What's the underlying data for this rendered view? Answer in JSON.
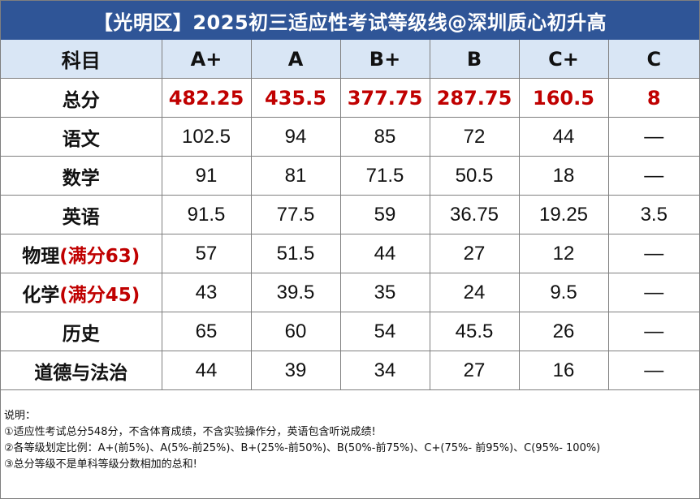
{
  "title": "【光明区】2025初三适应性考试等级线@深圳质心初升高",
  "table": {
    "headers": [
      "科目",
      "A+",
      "A",
      "B+",
      "B",
      "C+",
      "C"
    ],
    "total_row": {
      "subject": "总分",
      "values": [
        "482.25",
        "435.5",
        "377.75",
        "287.75",
        "160.5",
        "8"
      ]
    },
    "rows": [
      {
        "subject": "语文",
        "note": "",
        "values": [
          "102.5",
          "94",
          "85",
          "72",
          "44",
          "—"
        ]
      },
      {
        "subject": "数学",
        "note": "",
        "values": [
          "91",
          "81",
          "71.5",
          "50.5",
          "18",
          "—"
        ]
      },
      {
        "subject": "英语",
        "note": "",
        "values": [
          "91.5",
          "77.5",
          "59",
          "36.75",
          "19.25",
          "3.5"
        ]
      },
      {
        "subject": "物理",
        "note": "(满分63)",
        "values": [
          "57",
          "51.5",
          "44",
          "27",
          "12",
          "—"
        ]
      },
      {
        "subject": "化学",
        "note": "(满分45)",
        "values": [
          "43",
          "39.5",
          "35",
          "24",
          "9.5",
          "—"
        ]
      },
      {
        "subject": "历史",
        "note": "",
        "values": [
          "65",
          "60",
          "54",
          "45.5",
          "26",
          "—"
        ]
      },
      {
        "subject": "道德与法治",
        "note": "",
        "values": [
          "44",
          "39",
          "34",
          "27",
          "16",
          "—"
        ]
      }
    ]
  },
  "notes": {
    "heading": "说明：",
    "items": [
      "①适应性考试总分548分，不含体育成绩，不含实验操作分，英语包含听说成绩!",
      "②各等级划定比例：A+(前5%)、A(5%-前25%)、B+(25%-前50%)、B(50%-前75%)、C+(75%- 前95%)、C(95%- 100%)",
      "③总分等级不是单科等级分数相加的总和!"
    ]
  },
  "colors": {
    "title_bg": "#2f5597",
    "header_bg": "#d9e6f5",
    "highlight_red": "#c00000"
  }
}
